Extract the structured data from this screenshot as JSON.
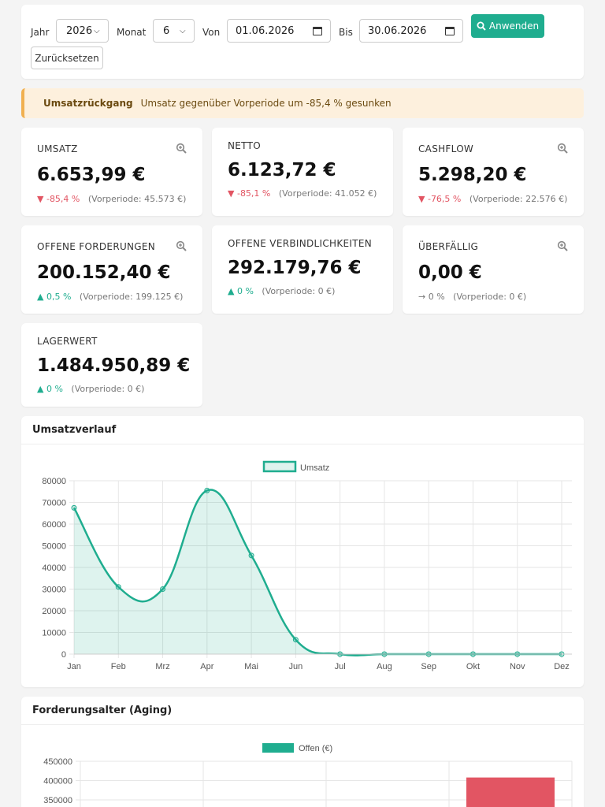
{
  "filter": {
    "year_label": "Jahr",
    "year_value": "2026",
    "month_label": "Monat",
    "month_value": "6",
    "from_label": "Von",
    "from_value": "01.06.2026",
    "to_label": "Bis",
    "to_value": "30.06.2026",
    "apply_label": "Anwenden",
    "reset_label": "Zurücksetzen"
  },
  "alert": {
    "title": "Umsatzrückgang",
    "message": "Umsatz gegenüber Vorperiode um -85,4 % gesunken"
  },
  "kpis": [
    {
      "title": "UMSATZ",
      "value": "6.653,99 €",
      "delta": "-85,4 %",
      "prev": "(Vorperiode: 45.573 €)",
      "trend": "down"
    },
    {
      "title": "NETTO",
      "value": "6.123,72 €",
      "delta": "-85,1 %",
      "prev": "(Vorperiode: 41.052 €)",
      "trend": "down"
    },
    {
      "title": "CASHFLOW",
      "value": "5.298,20 €",
      "delta": "-76,5 %",
      "prev": "(Vorperiode: 22.576 €)",
      "trend": "down"
    },
    {
      "title": "OFFENE FORDERUNGEN",
      "value": "200.152,40 €",
      "delta": "0,5 %",
      "prev": "(Vorperiode: 199.125 €)",
      "trend": "up"
    },
    {
      "title": "OFFENE VERBINDLICHKEITEN",
      "value": "292.179,76 €",
      "delta": "0 %",
      "prev": "(Vorperiode: 0 €)",
      "trend": "up"
    },
    {
      "title": "ÜBERFÄLLIG",
      "value": "0,00 €",
      "delta": "0 %",
      "prev": "(Vorperiode: 0 €)",
      "trend": "neutral"
    },
    {
      "title": "LAGERWERT",
      "value": "1.484.950,89 €",
      "delta": "0 %",
      "prev": "(Vorperiode: 0 €)",
      "trend": "up"
    }
  ],
  "charts": {
    "revenue_title": "Umsatzverlauf",
    "aging_title": "Forderungsalter (Aging)"
  },
  "colors": {
    "accent": "#1fad8f",
    "danger": "#e25563",
    "warning_bg": "#fdf0dd"
  },
  "chart_data": [
    {
      "type": "line",
      "title": "Umsatzverlauf",
      "categories": [
        "Jan",
        "Feb",
        "Mrz",
        "Apr",
        "Mai",
        "Jun",
        "Jul",
        "Aug",
        "Sep",
        "Okt",
        "Nov",
        "Dez"
      ],
      "series": [
        {
          "name": "Umsatz",
          "values": [
            67500,
            31000,
            30000,
            75500,
            45500,
            6654,
            0,
            0,
            0,
            0,
            0,
            0
          ]
        }
      ],
      "ylim": [
        0,
        80000
      ],
      "yticks": [
        0,
        10000,
        20000,
        30000,
        40000,
        50000,
        60000,
        70000,
        80000
      ],
      "grid": true,
      "legend": "top"
    },
    {
      "type": "bar",
      "title": "Forderungsalter (Aging)",
      "series": [
        {
          "name": "Offen (€)"
        }
      ],
      "visible_yticks": [
        350000,
        400000,
        450000
      ],
      "visible_bar_value_approx": 408000,
      "grid": true,
      "legend": "top"
    }
  ]
}
